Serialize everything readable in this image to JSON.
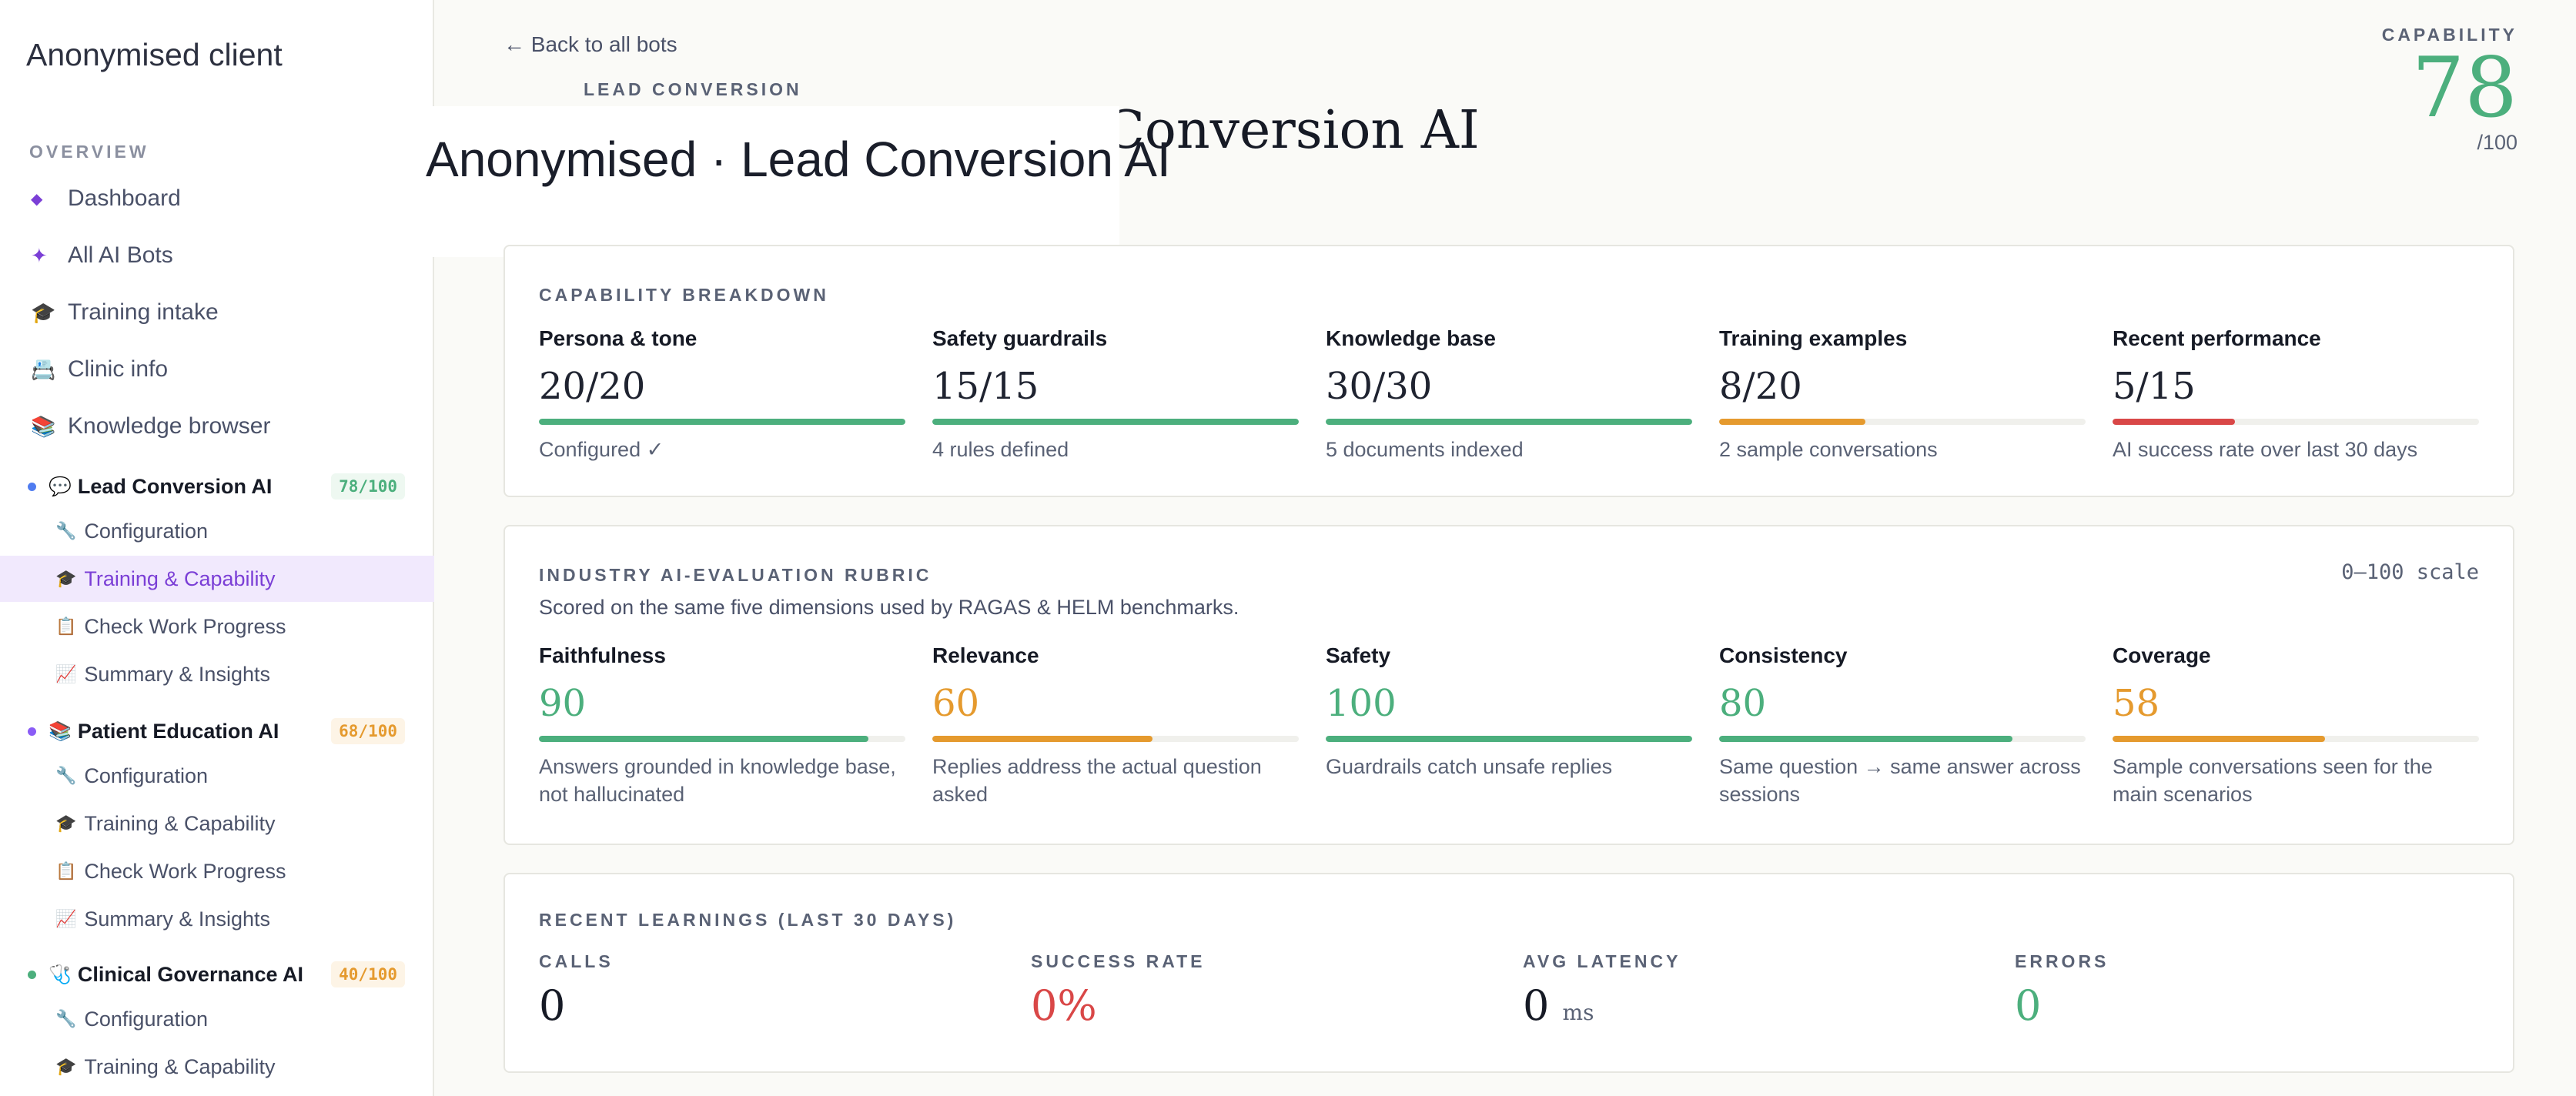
{
  "client_name": "Anonymised client",
  "sidebar": {
    "overview_label": "OVERVIEW",
    "nav": [
      {
        "icon": "◆",
        "label": "Dashboard"
      },
      {
        "icon": "✦",
        "label": "All AI Bots"
      },
      {
        "icon": "🎓",
        "label": "Training intake"
      },
      {
        "icon": "📇",
        "label": "Clinic info"
      },
      {
        "icon": "📚",
        "label": "Knowledge browser"
      }
    ],
    "bots": [
      {
        "name": "Lead Conversion AI",
        "icon": "💬",
        "score": "78/100",
        "dot_color": "#4f7cf0",
        "score_color": "#4caf7d",
        "score_bg": "#eef8f1"
      },
      {
        "name": "Patient Education AI",
        "icon": "📚",
        "score": "68/100",
        "dot_color": "#8a5cf6",
        "score_color": "#e59a2e",
        "score_bg": "#fdf4e6"
      },
      {
        "name": "Clinical Governance AI",
        "icon": "🩺",
        "score": "40/100",
        "dot_color": "#4caf7d",
        "score_color": "#e59a2e",
        "score_bg": "#fdf4e6"
      }
    ],
    "sub_items": [
      {
        "icon": "🔧",
        "label": "Configuration"
      },
      {
        "icon": "🎓",
        "label": "Training & Capability"
      },
      {
        "icon": "📋",
        "label": "Check Work Progress"
      },
      {
        "icon": "📈",
        "label": "Summary & Insights"
      }
    ]
  },
  "header": {
    "back_link": "← Back to all bots",
    "kicker": "LEAD CONVERSION",
    "title_behind": "Anonymised · Lead Conversion AI",
    "overlay_title": "Anonymised · Lead Conversion AI",
    "capability_label": "CAPABILITY",
    "capability_value": "78",
    "capability_max": "/100"
  },
  "breakdown": {
    "title": "CAPABILITY BREAKDOWN",
    "items": [
      {
        "name": "Persona & tone",
        "value": "20/20",
        "fraction": 1.0,
        "color": "#4caf7d",
        "note": "Configured ✓"
      },
      {
        "name": "Safety guardrails",
        "value": "15/15",
        "fraction": 1.0,
        "color": "#4caf7d",
        "note": "4 rules defined"
      },
      {
        "name": "Knowledge base",
        "value": "30/30",
        "fraction": 1.0,
        "color": "#4caf7d",
        "note": "5 documents indexed"
      },
      {
        "name": "Training examples",
        "value": "8/20",
        "fraction": 0.4,
        "color": "#e59a2e",
        "note": "2 sample conversations"
      },
      {
        "name": "Recent performance",
        "value": "5/15",
        "fraction": 0.333,
        "color": "#d94747",
        "note": "AI success rate over last 30 days"
      }
    ]
  },
  "rubric": {
    "title": "INDUSTRY AI-EVALUATION RUBRIC",
    "scale": "0–100 scale",
    "description": "Scored on the same five dimensions used by RAGAS & HELM benchmarks.",
    "items": [
      {
        "name": "Faithfulness",
        "value": "90",
        "fraction": 0.9,
        "color": "#4caf7d",
        "note": "Answers grounded in knowledge base, not hallucinated"
      },
      {
        "name": "Relevance",
        "value": "60",
        "fraction": 0.6,
        "color": "#e59a2e",
        "note": "Replies address the actual question asked"
      },
      {
        "name": "Safety",
        "value": "100",
        "fraction": 1.0,
        "color": "#4caf7d",
        "note": "Guardrails catch unsafe replies"
      },
      {
        "name": "Consistency",
        "value": "80",
        "fraction": 0.8,
        "color": "#4caf7d",
        "note": "Same question → same answer across sessions"
      },
      {
        "name": "Coverage",
        "value": "58",
        "fraction": 0.58,
        "color": "#e59a2e",
        "note": "Sample conversations seen for the main scenarios"
      }
    ]
  },
  "learnings": {
    "title": "RECENT LEARNINGS (LAST 30 DAYS)",
    "stats": [
      {
        "label": "CALLS",
        "value": "0",
        "unit": "",
        "color": "#161a25"
      },
      {
        "label": "SUCCESS RATE",
        "value": "0%",
        "unit": "",
        "color": "#d94747"
      },
      {
        "label": "AVG LATENCY",
        "value": "0",
        "unit": "ms",
        "color": "#161a25"
      },
      {
        "label": "ERRORS",
        "value": "0",
        "unit": "",
        "color": "#4caf7d"
      }
    ]
  }
}
